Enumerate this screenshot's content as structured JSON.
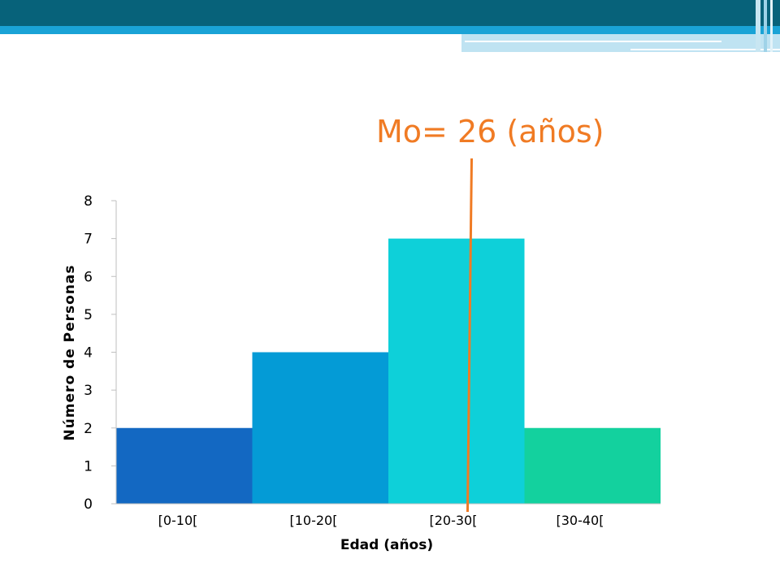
{
  "annotation": {
    "text": "Mo= 26 (años)",
    "mode_value": 26,
    "color": "#f07b24"
  },
  "theme": {
    "header_dark": "#07627a",
    "header_light": "#1aa3d6"
  },
  "chart_data": {
    "type": "bar",
    "categories": [
      "[0-10[",
      "[10-20[",
      "[20-30[",
      "[30-40["
    ],
    "bin_edges": [
      0,
      10,
      20,
      30,
      40
    ],
    "values": [
      2,
      4,
      7,
      2
    ],
    "colors": [
      "#1368c2",
      "#049bd6",
      "#0ed0d9",
      "#13d19e"
    ],
    "xlabel": "Edad (años)",
    "ylabel": "Número de Personas",
    "ylim": [
      0,
      8
    ],
    "yticks": [
      0,
      1,
      2,
      3,
      4,
      5,
      6,
      7,
      8
    ],
    "grid": false,
    "legend": "none"
  }
}
